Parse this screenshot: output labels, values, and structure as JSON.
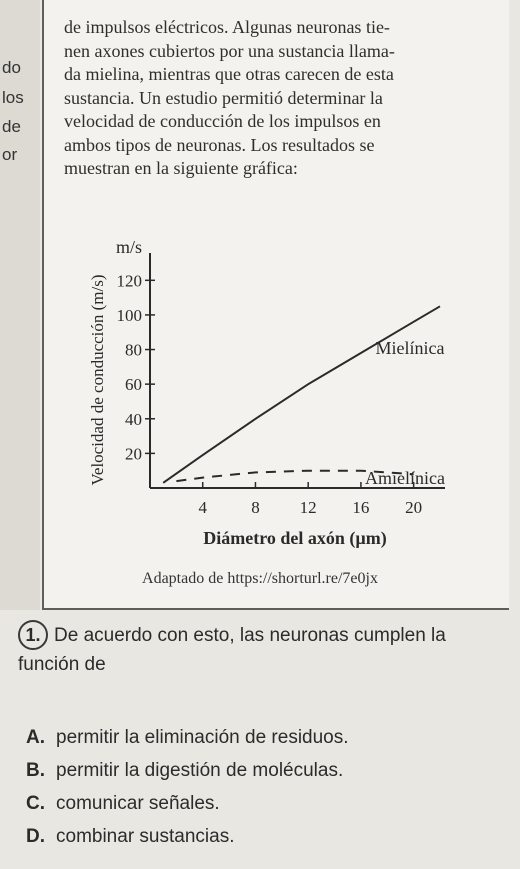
{
  "left_fragments": [
    "do",
    "los",
    "de",
    "or"
  ],
  "paragraph_lines": [
    "de impulsos eléctricos. Algunas neuronas tie-",
    "nen axones cubiertos por una sustancia llama-",
    "da mielina, mientras que otras carecen de esta",
    "sustancia. Un estudio permitió determinar la",
    "velocidad de conducción de los impulsos en",
    "ambos tipos de neuronas. Los resultados se",
    "muestran en la siguiente gráfica:"
  ],
  "chart_data": {
    "type": "line",
    "ylabel": "Velocidad de conducción (m/s)",
    "yunit": "m/s",
    "xlabel": "Diámetro del axón (µm)",
    "xticks": [
      4,
      8,
      12,
      16,
      20
    ],
    "yticks": [
      20,
      40,
      60,
      80,
      100,
      120
    ],
    "xlim": [
      0,
      22
    ],
    "ylim": [
      0,
      130
    ],
    "series": [
      {
        "name": "Mielínica",
        "style": "solid",
        "x": [
          1,
          4,
          8,
          12,
          16,
          20,
          22
        ],
        "y": [
          3,
          19,
          40,
          60,
          78,
          96,
          105
        ]
      },
      {
        "name": "Amielínica",
        "style": "dashed",
        "x": [
          2,
          4,
          8,
          12,
          16,
          20
        ],
        "y": [
          4,
          6,
          9,
          10,
          10,
          8
        ]
      }
    ]
  },
  "source": "Adaptado de https://shorturl.re/7e0jx",
  "question": {
    "number": "1.",
    "text": "De acuerdo con esto, las neuronas cumplen la función de"
  },
  "options": [
    {
      "letter": "A.",
      "text": "permitir la eliminación de residuos."
    },
    {
      "letter": "B.",
      "text": "permitir la digestión de moléculas."
    },
    {
      "letter": "C.",
      "text": "comunicar señales."
    },
    {
      "letter": "D.",
      "text": "combinar sustancias."
    }
  ]
}
